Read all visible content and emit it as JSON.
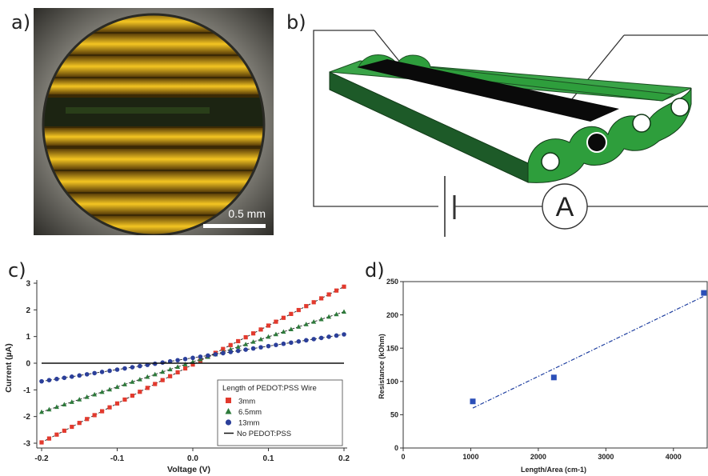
{
  "labels": {
    "a": "a)",
    "b": "b)",
    "c": "c)",
    "d": "d)"
  },
  "panel_a": {
    "scale_bar": "0.5 mm"
  },
  "panel_b": {
    "meter_symbol": "A"
  },
  "colors": {
    "red": "#e23a2e",
    "green": "#2c7a3a",
    "blue": "#2b3f9a",
    "line_c": "#111111",
    "wire_green": "#2e9e3c",
    "fit_blue": "#1f3fa0"
  },
  "chart_data": [
    {
      "type": "scatter",
      "xlabel": "Voltage (V)",
      "ylabel": "Current (µA)",
      "xlim": [
        -0.2,
        0.2
      ],
      "ylim": [
        -3,
        3
      ],
      "xticks": [
        "-0.2",
        "-0.1",
        "0.0",
        "0.1",
        "0.2"
      ],
      "yticks": [
        "-3",
        "-2",
        "-1",
        "0",
        "1",
        "2",
        "3"
      ],
      "legend_title": "Length of PEDOT:PSS Wire",
      "legend_placement": "bottom-right",
      "series": [
        {
          "name": "3mm",
          "marker": "square",
          "color": "red",
          "slope": 14.6,
          "intercept": -0.05,
          "fit": true
        },
        {
          "name": "6.5mm",
          "marker": "triangle",
          "color": "green",
          "slope": 9.4,
          "intercept": 0.05,
          "fit": true
        },
        {
          "name": "13mm",
          "marker": "circle",
          "color": "blue",
          "slope": 4.4,
          "intercept": 0.2,
          "fit": true
        },
        {
          "name": "No PEDOT:PSS",
          "marker": "line",
          "color": "line_c",
          "slope": 0,
          "intercept": 0,
          "fit": true
        }
      ]
    },
    {
      "type": "scatter",
      "xlabel": "Length/Area (cm-1)",
      "ylabel": "Resistance (kOhm)",
      "xlim": [
        0,
        4500
      ],
      "ylim": [
        0,
        250
      ],
      "xticks": [
        "0",
        "1000",
        "2000",
        "3000",
        "4000"
      ],
      "yticks": [
        "0",
        "50",
        "100",
        "150",
        "200",
        "250"
      ],
      "points": [
        {
          "x": 1030,
          "y": 70
        },
        {
          "x": 2230,
          "y": 106
        },
        {
          "x": 4450,
          "y": 233
        }
      ],
      "fit": {
        "x0": 1030,
        "y0": 60,
        "x1": 4450,
        "y1": 228
      }
    }
  ]
}
